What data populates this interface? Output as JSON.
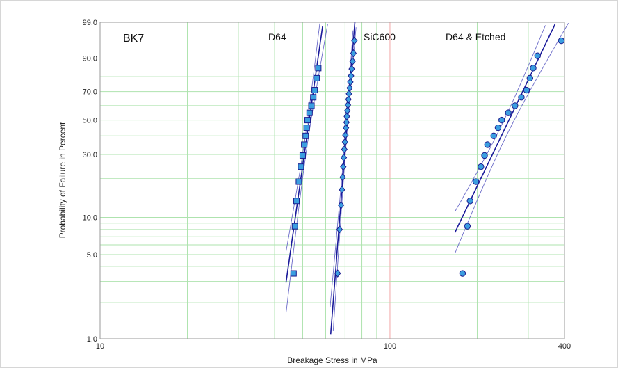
{
  "chart_data": {
    "type": "scatter",
    "title": "BK7",
    "xlabel": "Breakage Stress in MPa",
    "ylabel": "Probability of Failure in Percent",
    "x_scale": "log",
    "y_scale": "weibull",
    "xlim": [
      10,
      400
    ],
    "ylim": [
      1,
      99
    ],
    "x_tick_labels": [
      "10",
      "100",
      "400"
    ],
    "y_tick_labels": [
      "1,0",
      "5,0",
      "10,0",
      "30,0",
      "50,0",
      "70,0",
      "90,0",
      "99,0"
    ],
    "grid": true,
    "colors": {
      "grid": "#aee3ae",
      "ref_line": "#f2a6a6",
      "marker_fill": "#3b9ee0",
      "marker_edge": "#1a1a8c",
      "fit_line": "#1a1a9a",
      "confidence": "#6a6ac8"
    },
    "series": [
      {
        "name": "D64",
        "marker": "square",
        "x": [
          46.5,
          47.0,
          47.6,
          48.5,
          49.3,
          50.0,
          50.6,
          51.2,
          51.6,
          52.0,
          52.8,
          53.6,
          54.4,
          55.0,
          55.9,
          56.6
        ],
        "y": [
          3.5,
          8.5,
          13.5,
          19.0,
          24.5,
          29.5,
          35.0,
          40.0,
          45.0,
          50.0,
          55.0,
          60.0,
          66.0,
          71.0,
          79.0,
          85.0
        ]
      },
      {
        "name": "SiC600",
        "marker": "diamond",
        "x": [
          66.0,
          67.0,
          67.8,
          68.3,
          68.7,
          69.0,
          69.3,
          69.6,
          70.0,
          70.2,
          70.5,
          70.8,
          71.0,
          71.3,
          71.6,
          71.9,
          72.2,
          72.6,
          73.0,
          73.4,
          73.8,
          74.3,
          74.8,
          75.4
        ],
        "y": [
          3.5,
          8.0,
          12.5,
          16.5,
          20.5,
          24.5,
          28.5,
          32.5,
          36.5,
          40.5,
          45.0,
          48.5,
          52.5,
          56.5,
          60.5,
          64.5,
          68.5,
          72.5,
          76.5,
          80.5,
          84.5,
          88.5,
          92.0,
          96.0
        ]
      },
      {
        "name": "D64 & Etched",
        "marker": "circle",
        "x": [
          178,
          185,
          189,
          198,
          206,
          212,
          217,
          228,
          236,
          243,
          256,
          270,
          284,
          296,
          304,
          312,
          323,
          390
        ],
        "y": [
          3.5,
          8.5,
          13.5,
          19.0,
          24.5,
          29.5,
          35.0,
          40.0,
          45.0,
          50.0,
          55.0,
          60.0,
          66.0,
          71.0,
          79.0,
          85.0,
          91.0,
          96.0
        ]
      }
    ]
  }
}
